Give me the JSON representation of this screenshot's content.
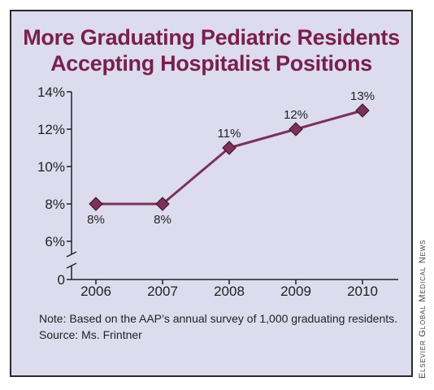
{
  "title_line1": "More Graduating Pediatric Residents",
  "title_line2": "Accepting Hospitalist Positions",
  "note": "Note: Based on the AAP’s annual survey of 1,000 graduating residents.",
  "source": "Source: Ms. Frintner",
  "credit": "Elsevier Global Medical News",
  "colors": {
    "line": "#7a3258",
    "marker": "#7a3258",
    "title": "#7a1f4c",
    "background": "#dcdcee"
  },
  "chart_data": {
    "type": "line",
    "title": "More Graduating Pediatric Residents Accepting Hospitalist Positions",
    "categories": [
      "2006",
      "2007",
      "2008",
      "2009",
      "2010"
    ],
    "values": [
      8,
      8,
      11,
      12,
      13
    ],
    "data_labels": [
      "8%",
      "8%",
      "11%",
      "12%",
      "13%"
    ],
    "y_ticks": [
      0,
      6,
      8,
      10,
      12,
      14
    ],
    "y_tick_labels": [
      "0",
      "6%",
      "8%",
      "10%",
      "12%",
      "14%"
    ],
    "y_axis_break": true,
    "ylim": [
      0,
      14
    ],
    "grid": false,
    "xlabel": "",
    "ylabel": ""
  }
}
